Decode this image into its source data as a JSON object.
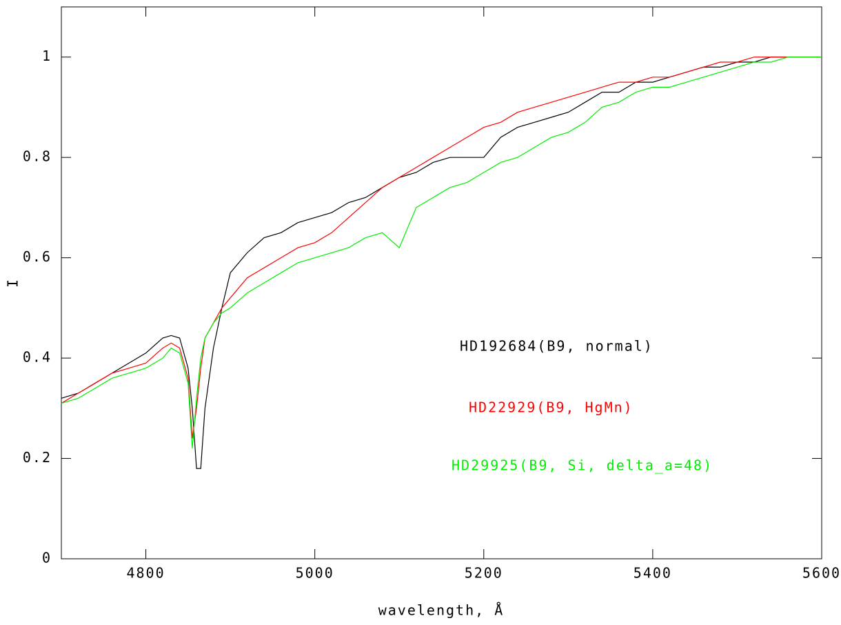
{
  "chart_data": {
    "type": "line",
    "xlabel": "wavelength, Å",
    "ylabel": "I",
    "x": [
      4700,
      4720,
      4740,
      4760,
      4780,
      4800,
      4820,
      4830,
      4840,
      4850,
      4855,
      4860,
      4865,
      4870,
      4880,
      4890,
      4900,
      4920,
      4940,
      4960,
      4980,
      5000,
      5020,
      5040,
      5060,
      5080,
      5100,
      5120,
      5140,
      5160,
      5180,
      5200,
      5220,
      5240,
      5260,
      5280,
      5300,
      5320,
      5340,
      5360,
      5380,
      5400,
      5420,
      5440,
      5460,
      5480,
      5500,
      5520,
      5540,
      5560,
      5580,
      5600
    ],
    "series": [
      {
        "name": "HD192684(B9, normal)",
        "color": "#000000",
        "values": [
          0.32,
          0.33,
          0.35,
          0.37,
          0.39,
          0.41,
          0.44,
          0.445,
          0.44,
          0.38,
          0.3,
          0.18,
          0.18,
          0.3,
          0.42,
          0.5,
          0.57,
          0.61,
          0.64,
          0.65,
          0.67,
          0.68,
          0.69,
          0.71,
          0.72,
          0.74,
          0.76,
          0.77,
          0.79,
          0.8,
          0.8,
          0.8,
          0.84,
          0.86,
          0.87,
          0.88,
          0.89,
          0.91,
          0.93,
          0.93,
          0.95,
          0.95,
          0.96,
          0.97,
          0.98,
          0.98,
          0.99,
          0.99,
          1.0,
          1.0,
          1.0,
          1.0
        ]
      },
      {
        "name": "HD22929(B9, HgMn)",
        "color": "#ff0000",
        "values": [
          0.31,
          0.33,
          0.35,
          0.37,
          0.38,
          0.39,
          0.42,
          0.43,
          0.42,
          0.36,
          0.24,
          0.3,
          0.38,
          0.44,
          0.47,
          0.5,
          0.52,
          0.56,
          0.58,
          0.6,
          0.62,
          0.63,
          0.65,
          0.68,
          0.71,
          0.74,
          0.76,
          0.78,
          0.8,
          0.82,
          0.84,
          0.86,
          0.87,
          0.89,
          0.9,
          0.91,
          0.92,
          0.93,
          0.94,
          0.95,
          0.95,
          0.96,
          0.96,
          0.97,
          0.98,
          0.99,
          0.99,
          1.0,
          1.0,
          1.0,
          1.0,
          1.0
        ]
      },
      {
        "name": "HD29925(B9, Si, delta_a=48)",
        "color": "#00ee00",
        "values": [
          0.31,
          0.32,
          0.34,
          0.36,
          0.37,
          0.38,
          0.4,
          0.42,
          0.41,
          0.35,
          0.22,
          0.32,
          0.4,
          0.44,
          0.47,
          0.49,
          0.5,
          0.53,
          0.55,
          0.57,
          0.59,
          0.6,
          0.61,
          0.62,
          0.64,
          0.65,
          0.62,
          0.7,
          0.72,
          0.74,
          0.75,
          0.77,
          0.79,
          0.8,
          0.82,
          0.84,
          0.85,
          0.87,
          0.9,
          0.91,
          0.93,
          0.94,
          0.94,
          0.95,
          0.96,
          0.97,
          0.98,
          0.99,
          0.99,
          1.0,
          1.0,
          1.0
        ]
      }
    ],
    "xlim": [
      4700,
      5600
    ],
    "xticks": [
      4800,
      5000,
      5200,
      5400,
      5600
    ],
    "ylim": [
      0,
      1.1
    ],
    "yticks": [
      0,
      0.2,
      0.4,
      0.6,
      0.8,
      1
    ]
  }
}
